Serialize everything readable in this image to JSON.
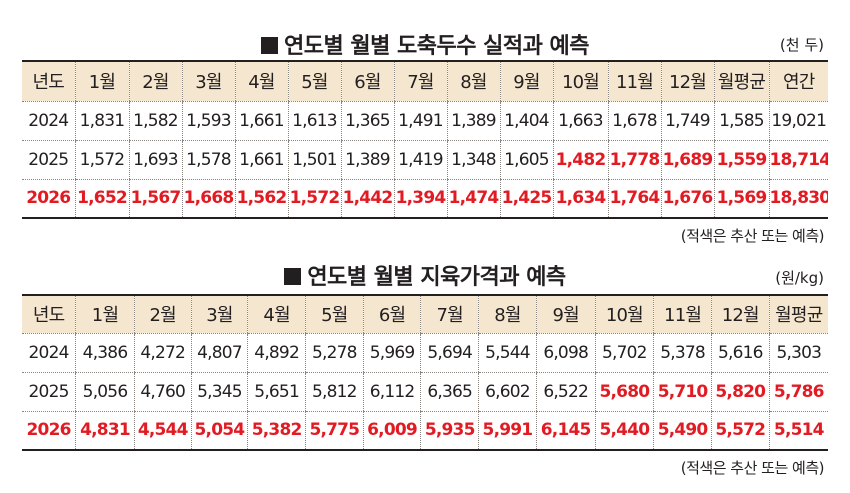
{
  "table1": {
    "title": "연도별 월별 도축두수 실적과 예측",
    "unit": "(천 두)",
    "note": "(적색은 추산 또는 예측)",
    "header": [
      "년도",
      "1월",
      "2월",
      "3월",
      "4월",
      "5월",
      "6월",
      "7월",
      "8월",
      "9월",
      "10월",
      "11월",
      "12월",
      "월평균",
      "연간"
    ],
    "rows": [
      {
        "year": "2024",
        "values": [
          "1,831",
          "1,582",
          "1,593",
          "1,661",
          "1,613",
          "1,365",
          "1,491",
          "1,389",
          "1,404",
          "1,663",
          "1,678",
          "1,749",
          "1,585",
          "19,021"
        ]
      },
      {
        "year": "2025",
        "values": [
          "1,572",
          "1,693",
          "1,578",
          "1,661",
          "1,501",
          "1,389",
          "1,419",
          "1,348",
          "1,605",
          "1,482",
          "1,778",
          "1,689",
          "1,559",
          "18,714"
        ]
      },
      {
        "year": "2026",
        "values": [
          "1,652",
          "1,567",
          "1,668",
          "1,562",
          "1,572",
          "1,442",
          "1,394",
          "1,474",
          "1,425",
          "1,634",
          "1,764",
          "1,676",
          "1,569",
          "18,830"
        ]
      }
    ]
  },
  "table2": {
    "title": "연도별 월별 지육가격과 예측",
    "unit": "(원/kg)",
    "note": "(적색은 추산 또는 예측)",
    "header": [
      "년도",
      "1월",
      "2월",
      "3월",
      "4월",
      "5월",
      "6월",
      "7월",
      "8월",
      "9월",
      "10월",
      "11월",
      "12월",
      "월평균"
    ],
    "rows": [
      {
        "year": "2024",
        "values": [
          "4,386",
          "4,272",
          "4,807",
          "4,892",
          "5,278",
          "5,969",
          "5,694",
          "5,544",
          "6,098",
          "5,702",
          "5,378",
          "5,616",
          "5,303"
        ]
      },
      {
        "year": "2025",
        "values": [
          "5,056",
          "4,760",
          "5,345",
          "5,651",
          "5,812",
          "6,112",
          "6,365",
          "6,602",
          "6,522",
          "5,680",
          "5,710",
          "5,820",
          "5,786"
        ]
      },
      {
        "year": "2026",
        "values": [
          "4,831",
          "4,544",
          "5,054",
          "5,382",
          "5,775",
          "6,009",
          "5,935",
          "5,991",
          "6,145",
          "5,440",
          "5,490",
          "5,572",
          "5,514"
        ]
      }
    ]
  },
  "colors": {
    "forecast_red": "#e21b23",
    "header_bg": "#f5e7cf"
  }
}
